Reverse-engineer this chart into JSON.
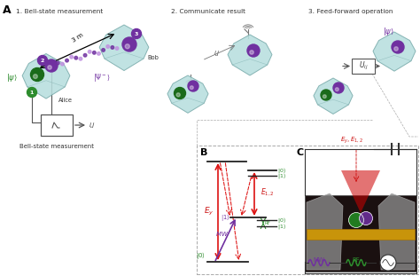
{
  "panel_A_label": "A",
  "panel_B_label": "B",
  "panel_C_label": "C",
  "step1_title": "1. Bell-state measurement",
  "step2_title": "2. Communicate result",
  "step3_title": "3. Feed-forward operation",
  "step1_subtitle": "Bell-state measurement",
  "label_3m": "3 m",
  "label_Alice": "Alice",
  "label_Bob": "Bob",
  "label_ij": "i,j",
  "label_MW": "MW",
  "label_RF": "RF",
  "bg_color": "#ffffff",
  "diamond_color": "#b8dede",
  "diamond_edge": "#7aacac",
  "ball_purple": "#7030a0",
  "ball_green": "#1a6b1a",
  "circle1_color": "#2d8c2d",
  "circle2_color": "#7030a0",
  "circle3_color": "#7030a0",
  "arrow_red": "#dd1111",
  "arrow_purple": "#7030a0",
  "arrow_gray": "#555555",
  "dashed_box_color": "#aaaaaa",
  "green_label_color": "#2d8c2d",
  "purple_label_color": "#7030a0",
  "red_label_color": "#cc1111"
}
